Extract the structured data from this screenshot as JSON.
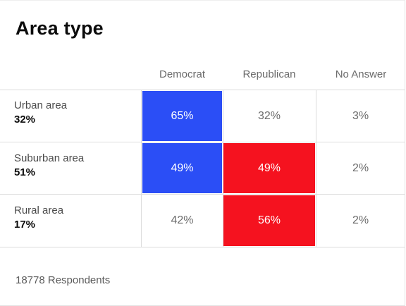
{
  "title": "Area type",
  "colors": {
    "democrat": "#2b4ef6",
    "republican": "#f5121f"
  },
  "columns": [
    "Democrat",
    "Republican",
    "No Answer"
  ],
  "rows": [
    {
      "label": "Urban area",
      "share": "32%",
      "values": [
        "65%",
        "32%",
        "3%"
      ],
      "leader": 0
    },
    {
      "label": "Suburban area",
      "share": "51%",
      "values": [
        "49%",
        "49%",
        "2%"
      ],
      "leader": [
        0,
        1
      ]
    },
    {
      "label": "Rural area",
      "share": "17%",
      "values": [
        "42%",
        "56%",
        "2%"
      ],
      "leader": 1
    }
  ],
  "footer": "18778 Respondents",
  "chart_data": {
    "type": "table",
    "title": "Area type",
    "columns": [
      "Democrat",
      "Republican",
      "No Answer"
    ],
    "categories": [
      "Urban area",
      "Suburban area",
      "Rural area"
    ],
    "category_share": [
      32,
      51,
      17
    ],
    "series": [
      {
        "name": "Democrat",
        "values": [
          65,
          49,
          42
        ]
      },
      {
        "name": "Republican",
        "values": [
          32,
          49,
          56
        ]
      },
      {
        "name": "No Answer",
        "values": [
          3,
          2,
          2
        ]
      }
    ],
    "respondents": 18778
  }
}
